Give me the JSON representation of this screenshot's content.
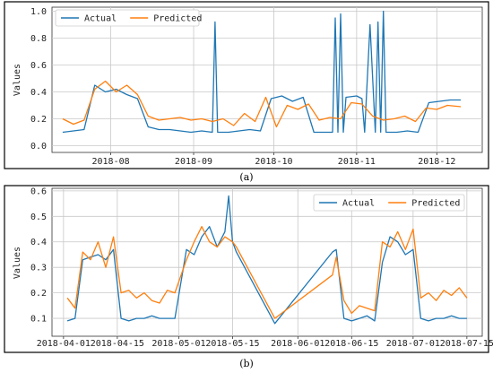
{
  "chart_data": [
    {
      "type": "line",
      "caption": "(a)",
      "ylabel": "Values",
      "ylim": [
        -0.05,
        1.03
      ],
      "y_ticks": [
        "0.0",
        "0.2",
        "0.4",
        "0.6",
        "0.8",
        "1.0"
      ],
      "y_tick_values": [
        0.0,
        0.2,
        0.4,
        0.6,
        0.8,
        1.0
      ],
      "x_ticks": [
        "2018-08",
        "2018-09",
        "2018-10",
        "2018-11",
        "2018-12"
      ],
      "x_tick_dates": [
        "2018-08-01",
        "2018-09-01",
        "2018-10-01",
        "2018-11-01",
        "2018-12-01"
      ],
      "xlim": [
        "2018-07-10",
        "2018-12-18"
      ],
      "grid": true,
      "legend": "top-left",
      "series": [
        {
          "name": "Actual",
          "color": "#1f77b4",
          "x": [
            "2018-07-14",
            "2018-07-18",
            "2018-07-22",
            "2018-07-26",
            "2018-07-30",
            "2018-08-03",
            "2018-08-07",
            "2018-08-11",
            "2018-08-15",
            "2018-08-19",
            "2018-08-23",
            "2018-08-27",
            "2018-08-31",
            "2018-09-04",
            "2018-09-08",
            "2018-09-09",
            "2018-09-10",
            "2018-09-14",
            "2018-09-18",
            "2018-09-22",
            "2018-09-26",
            "2018-09-30",
            "2018-10-04",
            "2018-10-08",
            "2018-10-12",
            "2018-10-16",
            "2018-10-20",
            "2018-10-23",
            "2018-10-24",
            "2018-10-25",
            "2018-10-26",
            "2018-10-27",
            "2018-10-28",
            "2018-11-01",
            "2018-11-03",
            "2018-11-04",
            "2018-11-06",
            "2018-11-08",
            "2018-11-09",
            "2018-11-10",
            "2018-11-11",
            "2018-11-12",
            "2018-11-16",
            "2018-11-20",
            "2018-11-24",
            "2018-11-28",
            "2018-12-02",
            "2018-12-06",
            "2018-12-10"
          ],
          "y": [
            0.1,
            0.11,
            0.12,
            0.45,
            0.4,
            0.42,
            0.38,
            0.35,
            0.14,
            0.12,
            0.12,
            0.11,
            0.1,
            0.11,
            0.1,
            0.92,
            0.1,
            0.1,
            0.11,
            0.12,
            0.11,
            0.35,
            0.37,
            0.33,
            0.36,
            0.1,
            0.1,
            0.1,
            0.95,
            0.1,
            0.98,
            0.1,
            0.36,
            0.37,
            0.35,
            0.1,
            0.9,
            0.1,
            0.92,
            0.1,
            1.0,
            0.1,
            0.1,
            0.11,
            0.1,
            0.32,
            0.33,
            0.34,
            0.34
          ]
        },
        {
          "name": "Predicted",
          "color": "#ff7f0e",
          "x": [
            "2018-07-14",
            "2018-07-18",
            "2018-07-22",
            "2018-07-26",
            "2018-07-30",
            "2018-08-03",
            "2018-08-07",
            "2018-08-11",
            "2018-08-15",
            "2018-08-19",
            "2018-08-23",
            "2018-08-27",
            "2018-08-31",
            "2018-09-04",
            "2018-09-08",
            "2018-09-12",
            "2018-09-16",
            "2018-09-20",
            "2018-09-24",
            "2018-09-28",
            "2018-10-02",
            "2018-10-06",
            "2018-10-10",
            "2018-10-14",
            "2018-10-18",
            "2018-10-22",
            "2018-10-26",
            "2018-10-30",
            "2018-11-03",
            "2018-11-07",
            "2018-11-11",
            "2018-11-15",
            "2018-11-19",
            "2018-11-23",
            "2018-11-27",
            "2018-12-01",
            "2018-12-05",
            "2018-12-10"
          ],
          "y": [
            0.2,
            0.16,
            0.19,
            0.42,
            0.48,
            0.4,
            0.45,
            0.38,
            0.22,
            0.19,
            0.2,
            0.21,
            0.19,
            0.2,
            0.18,
            0.2,
            0.15,
            0.24,
            0.18,
            0.36,
            0.14,
            0.3,
            0.27,
            0.31,
            0.19,
            0.21,
            0.2,
            0.32,
            0.31,
            0.22,
            0.19,
            0.2,
            0.22,
            0.18,
            0.28,
            0.27,
            0.3,
            0.29
          ]
        }
      ]
    },
    {
      "type": "line",
      "caption": "(b)",
      "ylabel": "Values",
      "ylim": [
        0.03,
        0.61
      ],
      "y_ticks": [
        "0.1",
        "0.2",
        "0.3",
        "0.4",
        "0.5",
        "0.6"
      ],
      "y_tick_values": [
        0.1,
        0.2,
        0.3,
        0.4,
        0.5,
        0.6
      ],
      "x_ticks": [
        "2018-04-01",
        "2018-04-15",
        "2018-05-01",
        "2018-05-15",
        "2018-06-01",
        "2018-06-15",
        "2018-07-01",
        "2018-07-15"
      ],
      "x_tick_dates": [
        "2018-04-01",
        "2018-04-15",
        "2018-05-01",
        "2018-05-15",
        "2018-06-01",
        "2018-06-15",
        "2018-07-01",
        "2018-07-15"
      ],
      "xlim": [
        "2018-03-29",
        "2018-07-19"
      ],
      "grid": true,
      "legend": "top-right",
      "series": [
        {
          "name": "Actual",
          "color": "#1f77b4",
          "x": [
            "2018-04-02",
            "2018-04-04",
            "2018-04-06",
            "2018-04-08",
            "2018-04-10",
            "2018-04-12",
            "2018-04-14",
            "2018-04-16",
            "2018-04-18",
            "2018-04-20",
            "2018-04-22",
            "2018-04-24",
            "2018-04-26",
            "2018-04-28",
            "2018-04-30",
            "2018-05-03",
            "2018-05-05",
            "2018-05-07",
            "2018-05-09",
            "2018-05-11",
            "2018-05-13",
            "2018-05-14",
            "2018-05-15",
            "2018-05-16",
            "2018-05-26",
            "2018-06-10",
            "2018-06-11",
            "2018-06-13",
            "2018-06-15",
            "2018-06-17",
            "2018-06-19",
            "2018-06-21",
            "2018-06-23",
            "2018-06-25",
            "2018-06-27",
            "2018-06-29",
            "2018-07-01",
            "2018-07-03",
            "2018-07-05",
            "2018-07-07",
            "2018-07-09",
            "2018-07-11",
            "2018-07-13",
            "2018-07-15"
          ],
          "y": [
            0.09,
            0.1,
            0.33,
            0.34,
            0.35,
            0.33,
            0.37,
            0.1,
            0.09,
            0.1,
            0.1,
            0.11,
            0.1,
            0.1,
            0.1,
            0.37,
            0.35,
            0.42,
            0.46,
            0.38,
            0.44,
            0.58,
            0.4,
            0.36,
            0.08,
            0.36,
            0.37,
            0.1,
            0.09,
            0.1,
            0.11,
            0.09,
            0.32,
            0.42,
            0.4,
            0.35,
            0.37,
            0.1,
            0.09,
            0.1,
            0.1,
            0.11,
            0.1,
            0.1
          ]
        },
        {
          "name": "Predicted",
          "color": "#ff7f0e",
          "x": [
            "2018-04-02",
            "2018-04-04",
            "2018-04-06",
            "2018-04-08",
            "2018-04-10",
            "2018-04-12",
            "2018-04-14",
            "2018-04-16",
            "2018-04-18",
            "2018-04-20",
            "2018-04-22",
            "2018-04-24",
            "2018-04-26",
            "2018-04-28",
            "2018-04-30",
            "2018-05-03",
            "2018-05-05",
            "2018-05-07",
            "2018-05-09",
            "2018-05-11",
            "2018-05-13",
            "2018-05-15",
            "2018-05-16",
            "2018-05-26",
            "2018-06-10",
            "2018-06-11",
            "2018-06-13",
            "2018-06-15",
            "2018-06-17",
            "2018-06-19",
            "2018-06-21",
            "2018-06-23",
            "2018-06-25",
            "2018-06-27",
            "2018-06-29",
            "2018-07-01",
            "2018-07-03",
            "2018-07-05",
            "2018-07-07",
            "2018-07-09",
            "2018-07-11",
            "2018-07-13",
            "2018-07-15"
          ],
          "y": [
            0.18,
            0.14,
            0.36,
            0.33,
            0.4,
            0.3,
            0.42,
            0.2,
            0.21,
            0.18,
            0.2,
            0.17,
            0.16,
            0.21,
            0.2,
            0.33,
            0.4,
            0.46,
            0.4,
            0.38,
            0.42,
            0.4,
            0.38,
            0.1,
            0.27,
            0.34,
            0.17,
            0.12,
            0.15,
            0.14,
            0.13,
            0.4,
            0.38,
            0.44,
            0.37,
            0.45,
            0.18,
            0.2,
            0.17,
            0.21,
            0.19,
            0.22,
            0.18
          ]
        }
      ]
    }
  ]
}
